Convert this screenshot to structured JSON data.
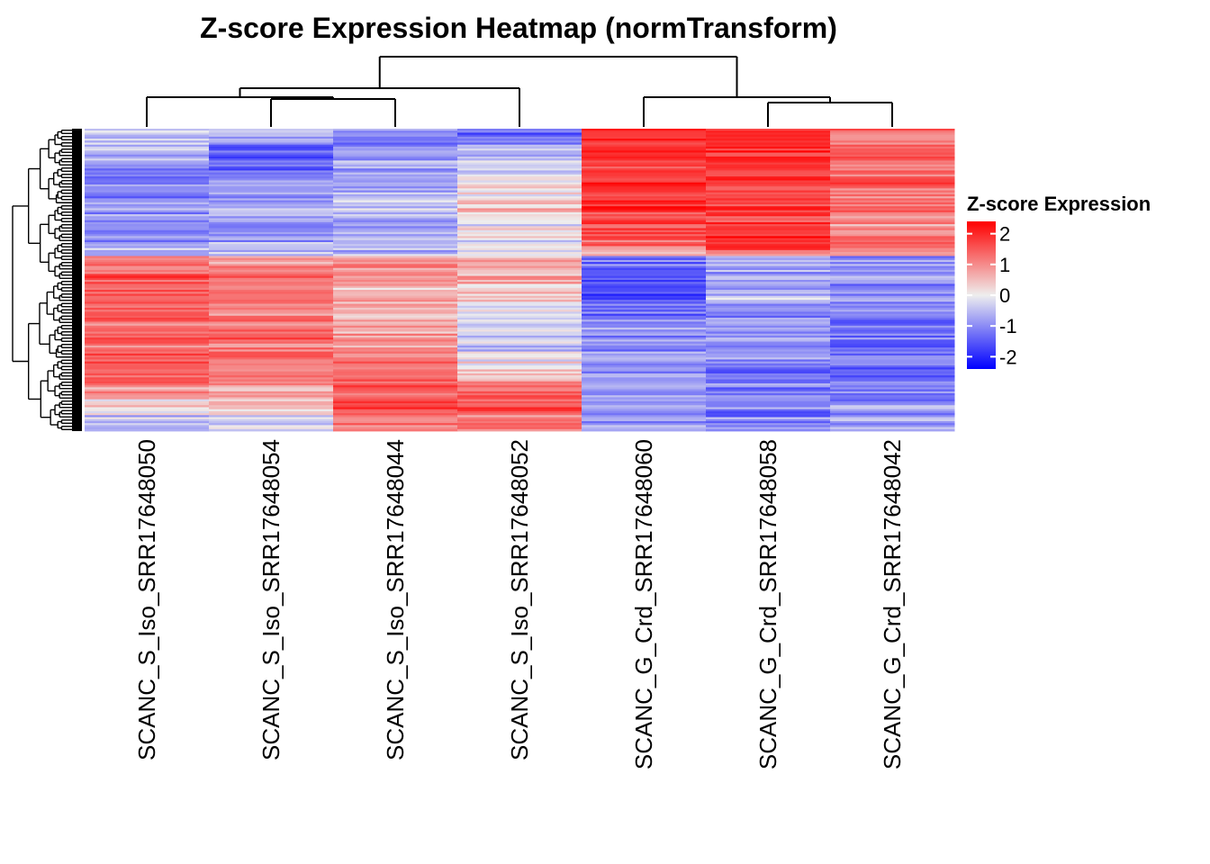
{
  "chart_data": {
    "type": "heatmap",
    "title": "Z-score Expression Heatmap (normTransform)",
    "columns": [
      "SCANC_S_Iso_SRR17648050",
      "SCANC_S_Iso_SRR17648054",
      "SCANC_S_Iso_SRR17648044",
      "SCANC_S_Iso_SRR17648052",
      "SCANC_G_Crd_SRR17648060",
      "SCANC_G_Crd_SRR17648058",
      "SCANC_G_Crd_SRR17648042"
    ],
    "row_blocks": [
      {
        "values": [
          -0.4,
          -0.6,
          -1.1,
          -1.4,
          2.0,
          1.9,
          1.3
        ]
      },
      {
        "values": [
          -0.5,
          -1.4,
          -0.9,
          -0.6,
          1.9,
          2.0,
          1.4
        ]
      },
      {
        "values": [
          -0.8,
          -1.3,
          -0.7,
          -0.2,
          1.8,
          1.9,
          1.3
        ]
      },
      {
        "values": [
          -1.2,
          -1.0,
          -0.8,
          0.1,
          1.7,
          1.8,
          1.3
        ]
      },
      {
        "values": [
          -1.0,
          -0.9,
          -0.6,
          0.2,
          1.8,
          1.7,
          1.2
        ]
      },
      {
        "values": [
          -0.9,
          -0.7,
          -0.5,
          0.3,
          1.9,
          1.8,
          1.4
        ]
      },
      {
        "values": [
          -0.8,
          -0.8,
          -0.7,
          0.0,
          1.6,
          1.9,
          0.6
        ]
      },
      {
        "values": [
          -0.9,
          -0.9,
          -0.8,
          -0.2,
          1.5,
          1.9,
          1.6
        ]
      },
      {
        "values": [
          1.2,
          0.9,
          0.8,
          0.6,
          -1.2,
          -0.7,
          -1.0
        ]
      },
      {
        "values": [
          1.4,
          1.1,
          0.9,
          0.5,
          -1.6,
          -0.8,
          -0.9
        ]
      },
      {
        "values": [
          1.3,
          0.8,
          0.6,
          0.3,
          -1.8,
          -0.6,
          -1.1
        ]
      },
      {
        "values": [
          1.5,
          1.2,
          0.7,
          0.1,
          -1.2,
          -0.9,
          -0.9
        ]
      },
      {
        "values": [
          1.4,
          1.4,
          0.8,
          -0.2,
          -1.0,
          -0.8,
          -1.2
        ]
      },
      {
        "values": [
          1.3,
          1.3,
          0.9,
          -0.3,
          -0.9,
          -0.9,
          -1.3
        ]
      },
      {
        "values": [
          1.5,
          1.2,
          1.1,
          -0.1,
          -0.8,
          -1.0,
          -1.3
        ]
      },
      {
        "values": [
          1.6,
          1.1,
          1.3,
          0.3,
          -0.9,
          -1.3,
          -1.5
        ]
      },
      {
        "values": [
          1.0,
          0.8,
          1.5,
          1.4,
          -0.8,
          -1.0,
          -1.1
        ]
      },
      {
        "values": [
          0.3,
          0.4,
          1.6,
          1.5,
          -0.7,
          -1.1,
          -0.9
        ]
      },
      {
        "values": [
          -0.4,
          -0.3,
          1.2,
          1.2,
          -0.8,
          -1.0,
          -0.8
        ]
      }
    ],
    "color_scale": {
      "min": -2.4,
      "max": 2.4,
      "low": "#0000ff",
      "mid": "#eeeeee",
      "high": "#ff0000"
    },
    "legend": {
      "title": "Z-score Expression",
      "ticks": [
        "2",
        "1",
        "0",
        "-1",
        "-2"
      ],
      "tick_values": [
        2,
        1,
        0,
        -1,
        -2
      ],
      "position": "right"
    },
    "column_dendrogram": true,
    "row_dendrogram": true
  }
}
